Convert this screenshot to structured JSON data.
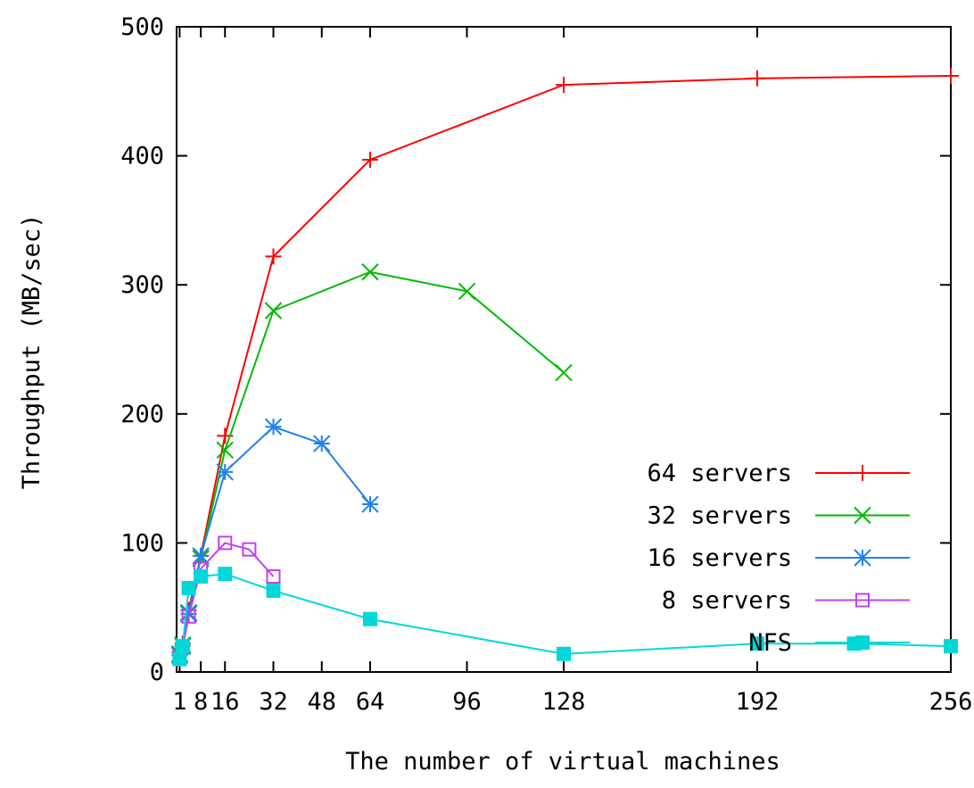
{
  "chart_data": {
    "type": "line",
    "title": "",
    "xlabel": "The number of virtual machines",
    "ylabel": "Throughput (MB/sec)",
    "xlim": [
      0,
      256
    ],
    "ylim": [
      0,
      500
    ],
    "x_ticks": [
      {
        "value": 1,
        "label": "1"
      },
      {
        "value": 8,
        "label": "8"
      },
      {
        "value": 16,
        "label": "16"
      },
      {
        "value": 32,
        "label": "32"
      },
      {
        "value": 48,
        "label": "48"
      },
      {
        "value": 64,
        "label": "64"
      },
      {
        "value": 96,
        "label": "96"
      },
      {
        "value": 128,
        "label": "128"
      },
      {
        "value": 192,
        "label": "192"
      },
      {
        "value": 256,
        "label": "256"
      }
    ],
    "y_ticks": [
      0,
      100,
      200,
      300,
      400,
      500
    ],
    "grid": false,
    "legend_position": "bottom-right",
    "series": [
      {
        "name": "64 servers",
        "color": "#ff0000",
        "marker": "plus",
        "x": [
          1,
          2,
          4,
          8,
          16,
          32,
          64,
          128,
          192,
          256
        ],
        "y": [
          15,
          22,
          48,
          90,
          183,
          322,
          397,
          455,
          460,
          462
        ]
      },
      {
        "name": "32 servers",
        "color": "#00bb00",
        "marker": "cross",
        "x": [
          1,
          2,
          4,
          8,
          16,
          32,
          64,
          96,
          128
        ],
        "y": [
          14,
          21,
          46,
          88,
          172,
          280,
          310,
          295,
          232
        ]
      },
      {
        "name": "16 servers",
        "color": "#2080ee",
        "marker": "star",
        "x": [
          1,
          2,
          4,
          8,
          16,
          32,
          48,
          64
        ],
        "y": [
          13,
          20,
          45,
          90,
          155,
          190,
          177,
          130
        ]
      },
      {
        "name": "8 servers",
        "color": "#c040f0",
        "marker": "open-square",
        "x": [
          1,
          2,
          4,
          8,
          16,
          24,
          32
        ],
        "y": [
          12,
          19,
          43,
          80,
          100,
          95,
          74
        ]
      },
      {
        "name": "NFS",
        "color": "#00d8d8",
        "marker": "filled-square",
        "x": [
          1,
          2,
          4,
          8,
          16,
          32,
          64,
          128,
          192,
          224,
          256
        ],
        "y": [
          10,
          20,
          65,
          74,
          76,
          63,
          41,
          14,
          22,
          22,
          20
        ]
      }
    ]
  }
}
